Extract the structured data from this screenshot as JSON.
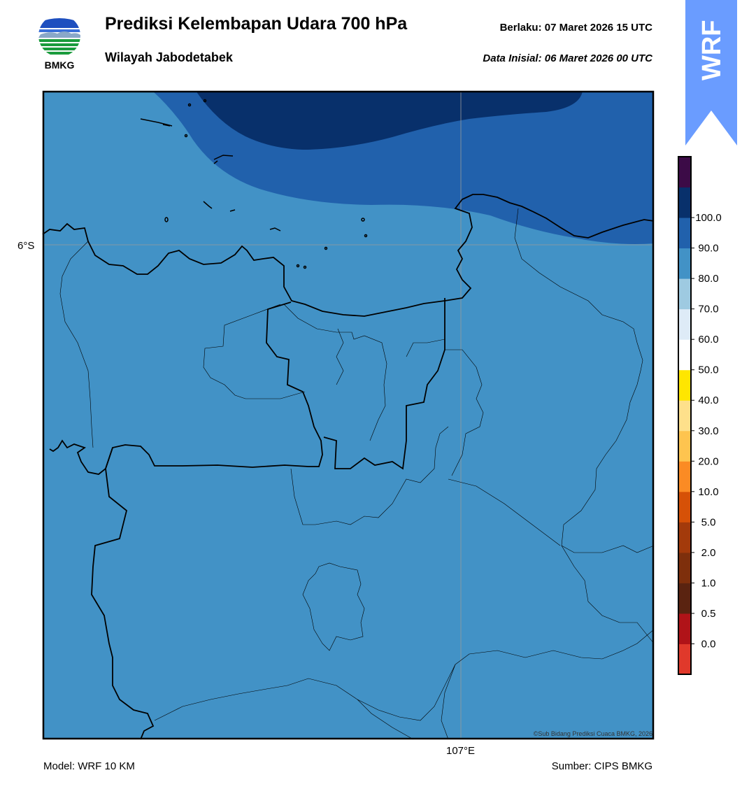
{
  "header": {
    "title": "Prediksi Kelembapan Udara 700 hPa",
    "subtitle": "Wilayah Jabodetabek",
    "valid": "Berlaku:  07 Maret 2026 15 UTC",
    "initial": "Data Inisial:  06 Maret 2026 00 UTC"
  },
  "logo": {
    "text": "BMKG",
    "icon": "bmkg-logo-icon"
  },
  "badge": {
    "text": "WRF",
    "color": "#6a9cff"
  },
  "map": {
    "lat_label": "6°S",
    "lon_label": "107°E",
    "copyright": "©Sub Bidang Prediksi Cuaca BMKG, 2026",
    "fill_colors": {
      "base": "#4292c6",
      "band_80_90": "#2161ac",
      "band_90_100": "#08306b"
    }
  },
  "colorbar": {
    "labels": [
      "0.0",
      "0.5",
      "1.0",
      "2.0",
      "5.0",
      "10.0",
      "20.0",
      "30.0",
      "40.0",
      "50.0",
      "60.0",
      "70.0",
      "80.0",
      "90.0",
      "100.0"
    ],
    "colors": [
      "#e0392b",
      "#b01318",
      "#5a2310",
      "#7e2f0c",
      "#a33a0b",
      "#d65107",
      "#fb8b24",
      "#fec44f",
      "#fee08b",
      "#ffe600",
      "#ffffff",
      "#deebf7",
      "#9ecae1",
      "#4292c6",
      "#2161ac",
      "#08306b",
      "#3c0b47"
    ]
  },
  "footer": {
    "model": "Model: WRF 10 KM",
    "source": "Sumber: CIPS BMKG"
  }
}
